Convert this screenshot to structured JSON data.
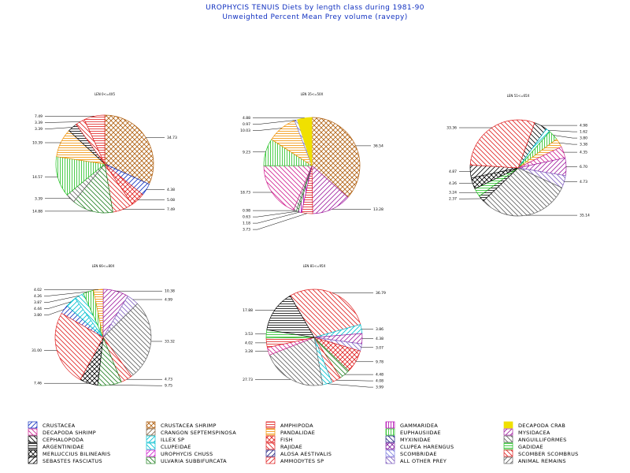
{
  "title": "UROPHYCIS TENUIS Diets by length class during 1981-90",
  "subtitle": "Unweighted Percent Mean Prey volume (ravepy)",
  "legend": [
    {
      "label": "CRUSTACEA",
      "color": "#1030c0",
      "pattern": "diag-right"
    },
    {
      "label": "CRUSTACEA SHRIMP",
      "color": "#b06010",
      "pattern": "cross"
    },
    {
      "label": "AMPHIPODA",
      "color": "#e02020",
      "pattern": "horizontal"
    },
    {
      "label": "GAMMARIDEA",
      "color": "#b000b0",
      "pattern": "vertical"
    },
    {
      "label": "DECAPODA CRAB",
      "color": "#f0e000",
      "pattern": "solid"
    },
    {
      "label": "DECAPODA SHRIMP",
      "color": "#d02090",
      "pattern": "diag-left"
    },
    {
      "label": "CRANGON SEPTEMSPINOSA",
      "color": "#806040",
      "pattern": "diag-right"
    },
    {
      "label": "PANDALIDAE",
      "color": "#f09000",
      "pattern": "horizontal"
    },
    {
      "label": "EUPHAUSIIDAE",
      "color": "#20c020",
      "pattern": "vertical"
    },
    {
      "label": "MYSIDACEA",
      "color": "#a020a0",
      "pattern": "diag-right"
    },
    {
      "label": "CEPHALOPODA",
      "color": "#000000",
      "pattern": "diag-left"
    },
    {
      "label": "ILLEX SP",
      "color": "#00c0d0",
      "pattern": "diag-right"
    },
    {
      "label": "FISH",
      "color": "#e02020",
      "pattern": "cross"
    },
    {
      "label": "MYXINIDAE",
      "color": "#202080",
      "pattern": "diag-left"
    },
    {
      "label": "ANGUILLIFORMES",
      "color": "#606060",
      "pattern": "diag-left"
    },
    {
      "label": "ARGENTINIDAE",
      "color": "#000000",
      "pattern": "horizontal"
    },
    {
      "label": "CLUPEIDAE",
      "color": "#00c0d0",
      "pattern": "diag-left"
    },
    {
      "label": "RAJIDAE",
      "color": "#e02020",
      "pattern": "diag-left"
    },
    {
      "label": "CLUPEA HARENGUS",
      "color": "#8020a0",
      "pattern": "cross"
    },
    {
      "label": "GADIDAE",
      "color": "#20c020",
      "pattern": "horizontal"
    },
    {
      "label": "MERLUCCIUS BILINEARIS",
      "color": "#000000",
      "pattern": "cross"
    },
    {
      "label": "UROPHYCIS CHUSS",
      "color": "#d020d0",
      "pattern": "diag-right"
    },
    {
      "label": "ALOSA AESTIVALIS",
      "color": "#202080",
      "pattern": "diag-right"
    },
    {
      "label": "SCOMBRIDAE",
      "color": "#8080e0",
      "pattern": "diag-left"
    },
    {
      "label": "SCOMBER SCOMBRUS",
      "color": "#e02020",
      "pattern": "diag-left"
    },
    {
      "label": "SEBASTES FASCIATUS",
      "color": "#000000",
      "pattern": "diag-right"
    },
    {
      "label": "ULVARIA SUBBIFURCATA",
      "color": "#208020",
      "pattern": "diag-left"
    },
    {
      "label": "AMMODYTES SP",
      "color": "#e02020",
      "pattern": "diag-right"
    },
    {
      "label": "ALL OTHER PREY",
      "color": "#8060c0",
      "pattern": "diag-left"
    },
    {
      "label": "ANIMAL REMAINS",
      "color": "#606060",
      "pattern": "diag-right"
    }
  ],
  "chart_data": [
    {
      "type": "pie",
      "title": "LEN 0<=4X5",
      "slices": [
        {
          "category": "CRUSTACEA SHRIMP",
          "value": 34.73
        },
        {
          "category": "CRUSTACEA",
          "value": 4.38
        },
        {
          "category": "FISH",
          "value": 5.08
        },
        {
          "category": "SCOMBER SCOMBRUS",
          "value": 7.49
        },
        {
          "category": "ULVARIA SUBBIFURCATA",
          "value": 14.88
        },
        {
          "category": "ANGUILLIFORMES",
          "value": 3.39
        },
        {
          "category": "EUPHAUSIIDAE",
          "value": 14.57
        },
        {
          "category": "PANDALIDAE",
          "value": 10.39
        },
        {
          "category": "ARGENTINIDAE",
          "value": 3.39
        },
        {
          "category": "RAJIDAE",
          "value": 3.39
        },
        {
          "category": "AMPHIPODA",
          "value": 7.49
        }
      ]
    },
    {
      "type": "pie",
      "title": "LEN 35<=50X",
      "slices": [
        {
          "category": "CRUSTACEA SHRIMP",
          "value": 36.54
        },
        {
          "category": "MYSIDACEA",
          "value": 13.28
        },
        {
          "category": "AMPHIPODA",
          "value": 3.73
        },
        {
          "category": "GAMMARIDEA",
          "value": 1.18
        },
        {
          "category": "ULVARIA SUBBIFURCATA",
          "value": 0.63
        },
        {
          "category": "ANGUILLIFORMES",
          "value": 0.98
        },
        {
          "category": "DECAPODA SHRIMP",
          "value": 18.73
        },
        {
          "category": "EUPHAUSIIDAE",
          "value": 9.23
        },
        {
          "category": "PANDALIDAE",
          "value": 10.03
        },
        {
          "category": "SCOMBRIDAE",
          "value": 0.97
        },
        {
          "category": "DECAPODA CRAB",
          "value": 4.88
        }
      ]
    },
    {
      "type": "pie",
      "title": "LEN 51<=65X",
      "slices": [
        {
          "category": "CEPHALOPODA",
          "value": 4.98
        },
        {
          "category": "ILLEX SP",
          "value": 1.62
        },
        {
          "category": "EUPHAUSIIDAE",
          "value": 3.8
        },
        {
          "category": "PANDALIDAE",
          "value": 3.38
        },
        {
          "category": "DECAPODA SHRIMP",
          "value": 4.35
        },
        {
          "category": "MYSIDACEA",
          "value": 6.7
        },
        {
          "category": "ALL OTHER PREY",
          "value": 4.73
        },
        {
          "category": "ANGUILLIFORMES",
          "value": 35.14
        },
        {
          "category": "ARGENTINIDAE",
          "value": 2.37
        },
        {
          "category": "GADIDAE",
          "value": 3.24
        },
        {
          "category": "MERLUCCIUS BILINEARIS",
          "value": 4.26
        },
        {
          "category": "SEBASTES FASCIATUS",
          "value": 4.87
        },
        {
          "category": "SCOMBER SCOMBRUS",
          "value": 33.36
        }
      ]
    },
    {
      "type": "pie",
      "title": "LEN 66<=80X",
      "slices": [
        {
          "category": "CRUSTACEA",
          "value": 3.8
        },
        {
          "category": "ILLEX SP",
          "value": 4.44
        },
        {
          "category": "CLUPEIDAE",
          "value": 3.87
        },
        {
          "category": "EUPHAUSIIDAE",
          "value": 4.26
        },
        {
          "category": "PANDALIDAE",
          "value": 4.02
        },
        {
          "category": "MYSIDACEA",
          "value": 10.38
        },
        {
          "category": "ALL OTHER PREY",
          "value": 4.99
        },
        {
          "category": "ANGUILLIFORMES",
          "value": 33.32
        },
        {
          "category": "RAJIDAE",
          "value": 4.73
        },
        {
          "category": "ULVARIA SUBBIFURCATA",
          "value": 9.75
        },
        {
          "category": "MERLUCCIUS BILINEARIS",
          "value": 7.46
        },
        {
          "category": "SCOMBER SCOMBRUS",
          "value": 31.0
        }
      ]
    },
    {
      "type": "pie",
      "title": "LEN 81<=95X",
      "slices": [
        {
          "category": "SCOMBER SCOMBRUS",
          "value": 36.79
        },
        {
          "category": "ILLEX SP",
          "value": 3.86
        },
        {
          "category": "MYSIDACEA",
          "value": 4.38
        },
        {
          "category": "ALL OTHER PREY",
          "value": 3.07
        },
        {
          "category": "FISH",
          "value": 9.78
        },
        {
          "category": "ULVARIA SUBBIFURCATA",
          "value": 4.48
        },
        {
          "category": "RAJIDAE",
          "value": 4.08
        },
        {
          "category": "CLUPEIDAE",
          "value": 3.99
        },
        {
          "category": "ANGUILLIFORMES",
          "value": 27.73
        },
        {
          "category": "DECAPODA SHRIMP",
          "value": 3.28
        },
        {
          "category": "AMPHIPODA",
          "value": 4.02
        },
        {
          "category": "GADIDAE",
          "value": 3.53
        },
        {
          "category": "ARGENTINIDAE",
          "value": 17.88
        }
      ]
    }
  ]
}
